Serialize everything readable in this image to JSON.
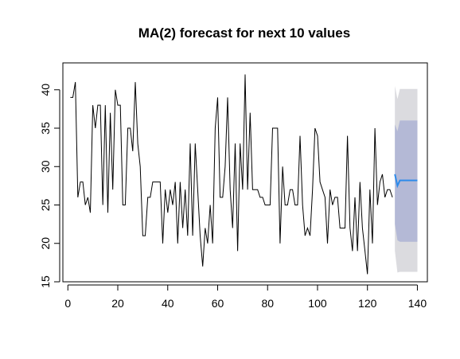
{
  "chart_data": {
    "type": "line",
    "title": "MA(2) forecast for next 10 values",
    "xlabel": "",
    "ylabel": "",
    "xlim": [
      -2,
      144
    ],
    "ylim": [
      15,
      43.5
    ],
    "x_ticks": [
      0,
      20,
      40,
      60,
      80,
      100,
      120,
      140
    ],
    "y_ticks": [
      15,
      20,
      25,
      30,
      35,
      40
    ],
    "grid": false,
    "colors": {
      "history": "#000000",
      "forecast": "#2E8BEA",
      "band95": "#DBDBDF",
      "band80": "#B4B9D6"
    },
    "series": [
      {
        "x": [
          1,
          2,
          3,
          4,
          5,
          6,
          7,
          8,
          9,
          10,
          11,
          12,
          13,
          14,
          15,
          16,
          17,
          18,
          19,
          20,
          21,
          22,
          23,
          24,
          25,
          26,
          27,
          28,
          29,
          30,
          31,
          32,
          33,
          34,
          35,
          36,
          37,
          38,
          39,
          40,
          41,
          42,
          43,
          44,
          45,
          46,
          47,
          48,
          49,
          50,
          51,
          52,
          53,
          54,
          55,
          56,
          57,
          58,
          59,
          60,
          61,
          62,
          63,
          64,
          65,
          66,
          67,
          68,
          69,
          70,
          71,
          72,
          73,
          74,
          75,
          76,
          77,
          78,
          79,
          80,
          81,
          82,
          83,
          84,
          85,
          86,
          87,
          88,
          89,
          90,
          91,
          92,
          93,
          94,
          95,
          96,
          97,
          98,
          99,
          100,
          101,
          102,
          103,
          104,
          105,
          106,
          107,
          108,
          109,
          110,
          111,
          112,
          113,
          114,
          115,
          116,
          117,
          118,
          119,
          120,
          121,
          122,
          123,
          124,
          125,
          126,
          127,
          128,
          129,
          130
        ],
        "values": [
          39,
          39,
          41,
          26,
          28,
          28,
          25,
          26,
          24,
          38,
          35,
          38,
          38,
          25,
          38,
          24,
          37,
          27,
          40,
          38,
          38,
          25,
          25,
          35,
          35,
          32,
          41,
          33,
          30,
          21,
          21,
          26,
          26,
          28,
          28,
          28,
          28,
          20,
          27,
          24,
          27,
          25,
          28,
          20,
          28,
          22,
          27,
          21,
          33,
          21,
          33,
          27,
          21,
          17,
          22,
          20,
          25,
          20,
          35,
          39,
          26,
          26,
          30,
          39,
          27,
          22,
          33,
          19,
          33,
          27,
          42,
          27,
          37,
          27,
          27,
          27,
          26,
          26,
          25,
          25,
          25,
          35,
          35,
          35,
          20,
          30,
          25,
          25,
          27,
          27,
          25,
          25,
          34,
          25,
          21,
          22,
          21,
          27,
          35,
          34,
          28,
          27,
          26,
          20,
          27,
          25,
          26,
          26,
          22,
          22,
          22,
          34,
          22,
          19,
          26,
          19,
          28,
          22,
          19,
          16,
          27,
          20,
          35,
          25,
          28,
          29,
          26,
          27,
          27,
          26
        ],
        "color": "#000000"
      },
      {
        "x": [
          131,
          132,
          133,
          134,
          135,
          136,
          137,
          138,
          139,
          140
        ],
        "values": [
          29.0,
          27.5,
          28.2,
          28.2,
          28.2,
          28.2,
          28.2,
          28.2,
          28.2,
          28.2
        ],
        "lo80": [
          22.5,
          20.4,
          20.2,
          20.2,
          20.2,
          20.2,
          20.2,
          20.2,
          20.2,
          20.2
        ],
        "hi80": [
          35.5,
          34.6,
          36.0,
          36.0,
          36.0,
          36.0,
          36.0,
          36.0,
          36.0,
          36.0
        ],
        "lo95": [
          19.0,
          16.2,
          16.3,
          16.3,
          16.3,
          16.3,
          16.3,
          16.3,
          16.3,
          16.3
        ],
        "hi95": [
          40.5,
          38.8,
          40.1,
          40.1,
          40.1,
          40.1,
          40.1,
          40.1,
          40.1,
          40.1
        ],
        "color": "#2E8BEA"
      }
    ]
  }
}
